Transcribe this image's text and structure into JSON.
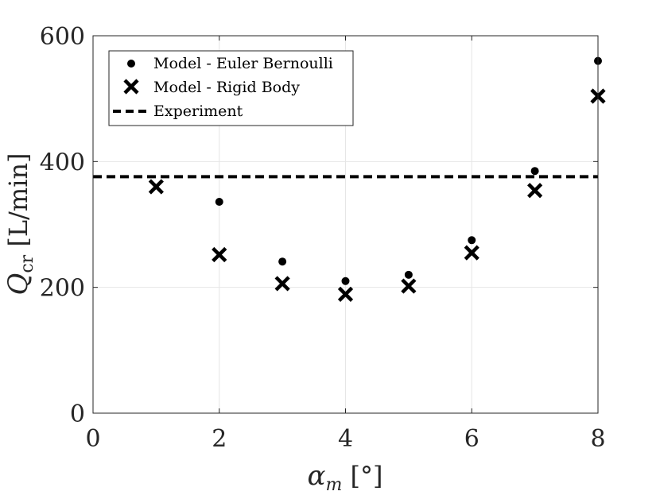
{
  "chart_data": {
    "type": "scatter",
    "x": [
      1,
      2,
      3,
      4,
      5,
      6,
      7,
      8
    ],
    "series": [
      {
        "name": "Model - Euler Bernoulli",
        "marker": "dot",
        "x": [
          2,
          3,
          4,
          5,
          6,
          7,
          8
        ],
        "values": [
          336,
          241,
          210,
          220,
          275,
          385,
          560
        ]
      },
      {
        "name": "Model - Rigid Body",
        "marker": "x",
        "x": [
          1,
          2,
          3,
          4,
          5,
          6,
          7,
          8
        ],
        "values": [
          360,
          252,
          206,
          189,
          202,
          255,
          354,
          504
        ]
      },
      {
        "name": "Experiment",
        "marker": "dashed-line",
        "value": 376
      }
    ],
    "xlabel": "α_m [°]",
    "ylabel": "Q_cr [L/min]",
    "xlim": [
      0,
      8
    ],
    "ylim": [
      0,
      600
    ],
    "xticks": [
      "0",
      "2",
      "4",
      "6",
      "8"
    ],
    "yticks": [
      "0",
      "200",
      "400",
      "600"
    ],
    "grid": true,
    "legend_position": "top-left",
    "colors": {
      "markers": "#000000",
      "axis": "#262626",
      "grid": "#e6e6e6"
    }
  }
}
